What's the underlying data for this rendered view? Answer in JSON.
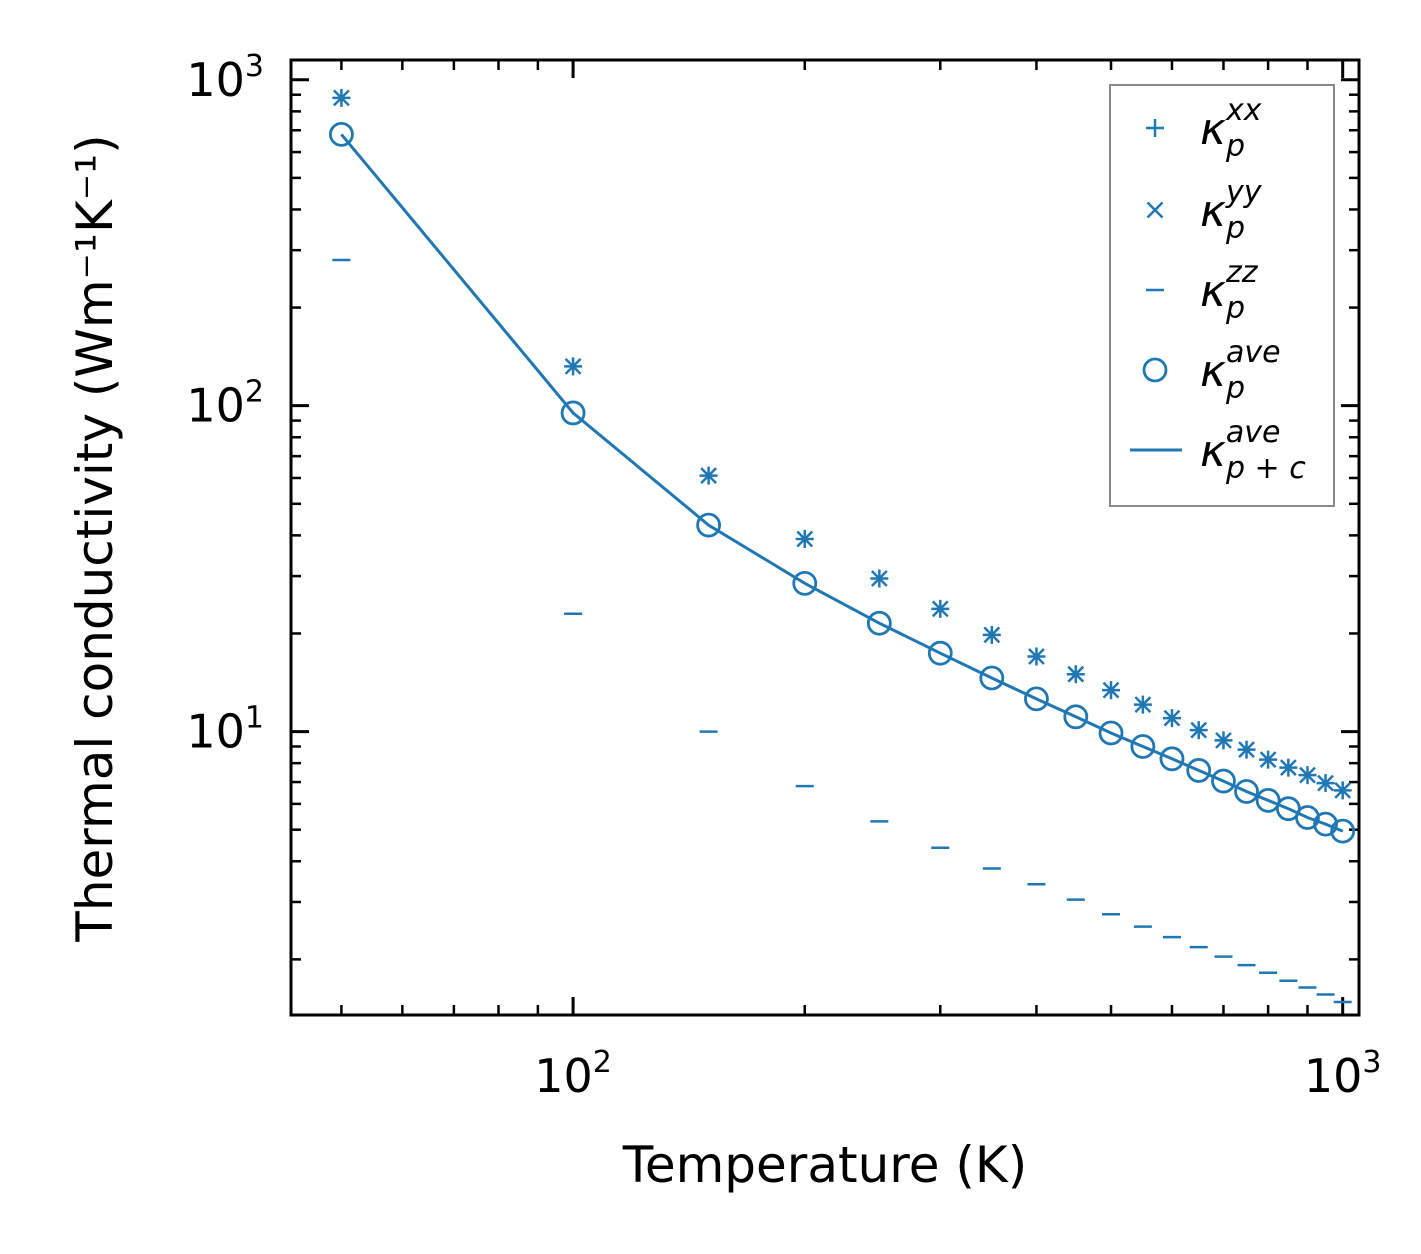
{
  "chart_data": {
    "type": "scatter",
    "xscale": "log",
    "yscale": "log",
    "xlabel": "Temperature (K)",
    "ylabel": "Thermal conductivity (Wm⁻¹K⁻¹)",
    "xlim": [
      43,
      1050
    ],
    "ylim": [
      1.35,
      1150
    ],
    "xticks": [
      {
        "base": "10",
        "exp": "2",
        "value": 100
      },
      {
        "base": "10",
        "exp": "3",
        "value": 1000
      }
    ],
    "yticks": [
      {
        "base": "10",
        "exp": "1",
        "value": 10
      },
      {
        "base": "10",
        "exp": "2",
        "value": 100
      },
      {
        "base": "10",
        "exp": "3",
        "value": 1000
      }
    ],
    "x": [
      50,
      100,
      150,
      200,
      250,
      300,
      350,
      400,
      450,
      500,
      550,
      600,
      650,
      700,
      750,
      800,
      850,
      900,
      950,
      1000
    ],
    "color": "#1f77b4",
    "legend_position": "top-right",
    "series": [
      {
        "key": "kxx",
        "name": "kappa_p^xx",
        "marker": "plus",
        "base": "κ",
        "sub": "p",
        "sup": "xx",
        "values": [
          880,
          132,
          61,
          39,
          29.5,
          23.8,
          19.8,
          17.0,
          15.0,
          13.4,
          12.1,
          11.0,
          10.1,
          9.4,
          8.8,
          8.2,
          7.75,
          7.35,
          6.95,
          6.6
        ]
      },
      {
        "key": "kyy",
        "name": "kappa_p^yy",
        "marker": "x",
        "base": "κ",
        "sub": "p",
        "sup": "yy",
        "values": [
          880,
          132,
          61,
          39,
          29.5,
          23.8,
          19.8,
          17.0,
          15.0,
          13.4,
          12.1,
          11.0,
          10.1,
          9.4,
          8.8,
          8.2,
          7.75,
          7.35,
          6.95,
          6.6
        ]
      },
      {
        "key": "kzz",
        "name": "kappa_p^zz",
        "marker": "hline",
        "base": "κ",
        "sub": "p",
        "sup": "zz",
        "values": [
          280,
          23,
          10,
          6.8,
          5.3,
          4.4,
          3.8,
          3.4,
          3.05,
          2.75,
          2.52,
          2.34,
          2.18,
          2.04,
          1.92,
          1.82,
          1.72,
          1.64,
          1.56,
          1.48
        ]
      },
      {
        "key": "kave",
        "name": "kappa_p^ave",
        "marker": "circle",
        "base": "κ",
        "sub": "p",
        "sup": "ave",
        "values": [
          680,
          95,
          43,
          28.5,
          21.5,
          17.4,
          14.6,
          12.6,
          11.1,
          9.9,
          9.0,
          8.25,
          7.6,
          7.05,
          6.55,
          6.15,
          5.8,
          5.45,
          5.2,
          4.95
        ]
      },
      {
        "key": "kpc",
        "name": "kappa_p+c^ave",
        "marker": "line",
        "base": "κ",
        "sub": "p + c",
        "sup": "ave",
        "values": [
          680,
          95,
          43,
          28.5,
          21.5,
          17.4,
          14.6,
          12.6,
          11.1,
          9.9,
          9.0,
          8.25,
          7.6,
          7.05,
          6.55,
          6.15,
          5.8,
          5.45,
          5.2,
          4.95
        ]
      }
    ]
  }
}
